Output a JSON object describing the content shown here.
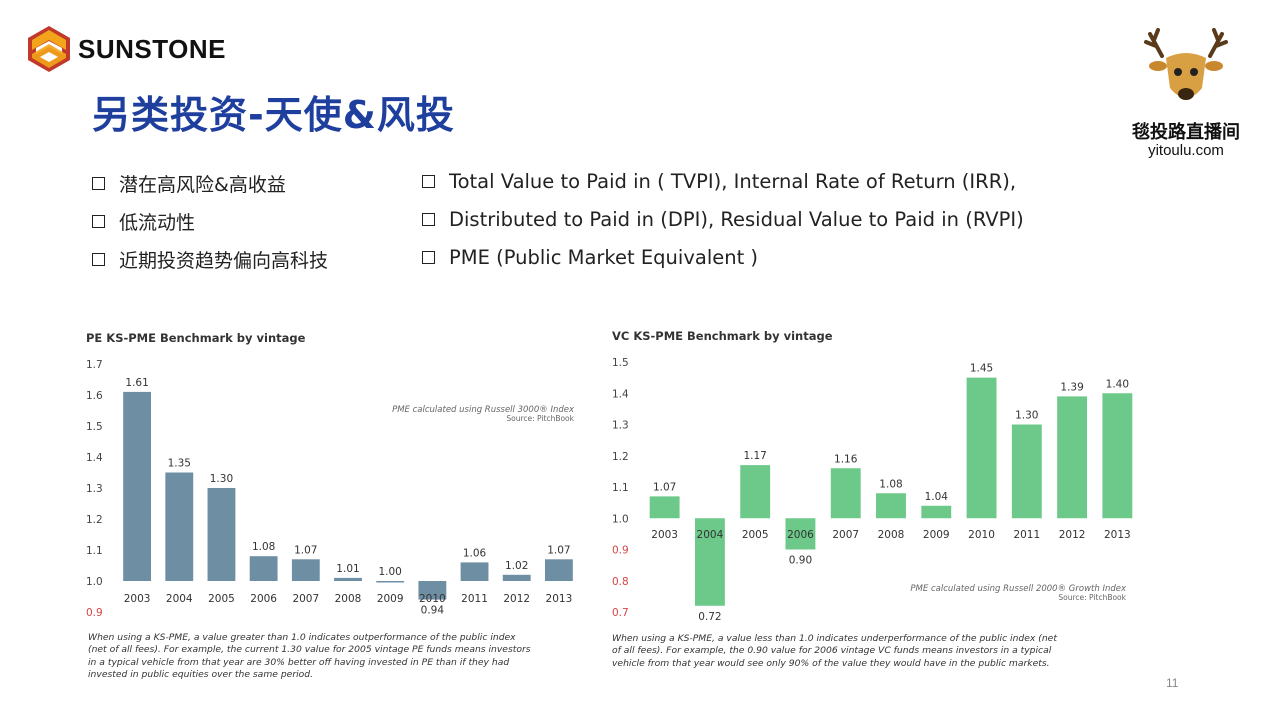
{
  "header": {
    "brand": "SUNSTONE",
    "title": "另类投资-天使&风投",
    "badge_cn": "毯投路直播间",
    "badge_url": "yitoulu.com"
  },
  "bullets_left": [
    "潜在高风险&高收益",
    "低流动性",
    "近期投资趋势偏向高科技"
  ],
  "bullets_right": [
    "Total Value to Paid in ( TVPI), Internal Rate of Return (IRR),",
    "Distributed to Paid in (DPI), Residual Value to Paid in (RVPI)",
    "PME (Public Market Equivalent )"
  ],
  "colors": {
    "title": "#1f3f9e",
    "pe_bar": "#6e8ea4",
    "vc_bar": "#6cc989",
    "below_one": "#d64545",
    "logo_orange": "#f2a51a",
    "logo_red": "#c0392b"
  },
  "chart_data": [
    {
      "type": "bar",
      "title": "PE KS-PME Benchmark by vintage",
      "categories": [
        "2003",
        "2004",
        "2005",
        "2006",
        "2007",
        "2008",
        "2009",
        "2010",
        "2011",
        "2012",
        "2013"
      ],
      "values": [
        1.61,
        1.35,
        1.3,
        1.08,
        1.07,
        1.01,
        1.0,
        0.94,
        1.06,
        1.02,
        1.07
      ],
      "data_labels": [
        "1.61",
        "1.35",
        "1.30",
        "1.08",
        "1.07",
        "1.01",
        "1.00",
        "0.94",
        "1.06",
        "1.02",
        "1.07"
      ],
      "ylim": [
        0.9,
        1.7
      ],
      "yticks": [
        "1.7",
        "1.6",
        "1.5",
        "1.4",
        "1.3",
        "1.2",
        "1.1",
        "1.0",
        "0.9"
      ],
      "baseline": 1.0,
      "source_line1": "PME calculated using Russell 3000® Index",
      "source_line2": "Source: PitchBook",
      "footnote": [
        "When using a KS-PME, a value greater than 1.0 indicates outperformance of the public index",
        "(net of all fees). For example, the current 1.30 value for 2005 vintage PE funds means investors",
        "in a typical vehicle from that year are 30% better off having invested in PE than if they had",
        "invested in public equities over the same period."
      ]
    },
    {
      "type": "bar",
      "title": "VC KS-PME Benchmark by vintage",
      "categories": [
        "2003",
        "2004",
        "2005",
        "2006",
        "2007",
        "2008",
        "2009",
        "2010",
        "2011",
        "2012",
        "2013"
      ],
      "values": [
        1.07,
        0.72,
        1.17,
        0.9,
        1.16,
        1.08,
        1.04,
        1.45,
        1.3,
        1.39,
        1.4
      ],
      "data_labels": [
        "1.07",
        "0.72",
        "1.17",
        "0.90",
        "1.16",
        "1.08",
        "1.04",
        "1.45",
        "1.30",
        "1.39",
        "1.40"
      ],
      "ylim": [
        0.7,
        1.5
      ],
      "yticks": [
        "1.5",
        "1.4",
        "1.3",
        "1.2",
        "1.1",
        "1.0",
        "0.9",
        "0.8",
        "0.7"
      ],
      "baseline": 1.0,
      "source_line1": "PME calculated using Russell 2000® Growth Index",
      "source_line2": "Source: PitchBook",
      "footnote": [
        "When using a KS-PME, a value less than 1.0 indicates underperformance of the public index (net",
        "of all fees). For example, the 0.90 value for 2006 vintage VC funds means investors in a typical",
        "vehicle from that year would see only 90% of the value they would have in the public markets."
      ]
    }
  ],
  "page_number": "11"
}
